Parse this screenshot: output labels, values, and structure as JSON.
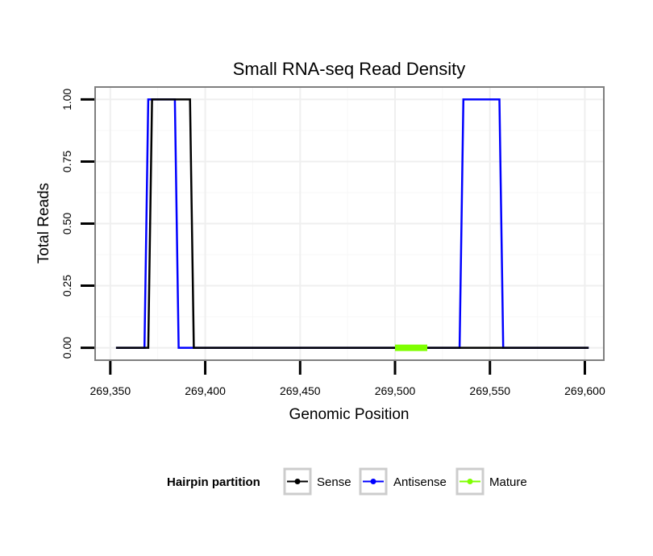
{
  "chart_data": {
    "type": "line",
    "title": "Small RNA-seq Read Density",
    "xlabel": "Genomic Position",
    "ylabel": "Total Reads",
    "xlim": [
      269342,
      269610
    ],
    "ylim": [
      -0.05,
      1.05
    ],
    "grid": true,
    "x_ticks": [
      269350,
      269400,
      269450,
      269500,
      269550,
      269600
    ],
    "x_tick_labels": [
      "269,350",
      "269,400",
      "269,450",
      "269,500",
      "269,550",
      "269,600"
    ],
    "y_ticks": [
      0,
      0.25,
      0.5,
      0.75,
      1.0
    ],
    "y_tick_labels": [
      "0.00",
      "0.25",
      "0.50",
      "0.75",
      "1.00"
    ],
    "legend_title": "Hairpin partition",
    "legend_position": "bottom",
    "series": [
      {
        "name": "Sense",
        "color": "#000000",
        "x": [
          269353,
          269370,
          269372,
          269392,
          269394,
          269602
        ],
        "y": [
          0,
          0,
          1,
          1,
          0,
          0
        ]
      },
      {
        "name": "Antisense",
        "color": "#0000ff",
        "x": [
          269353,
          269368,
          269370,
          269384,
          269386,
          269534,
          269536,
          269555,
          269557,
          269602
        ],
        "y": [
          0,
          0,
          1,
          1,
          0,
          0,
          1,
          1,
          0,
          0
        ]
      },
      {
        "name": "Mature",
        "color": "#7fff00",
        "x": [
          269500,
          269517
        ],
        "y": [
          0,
          0
        ]
      }
    ]
  }
}
